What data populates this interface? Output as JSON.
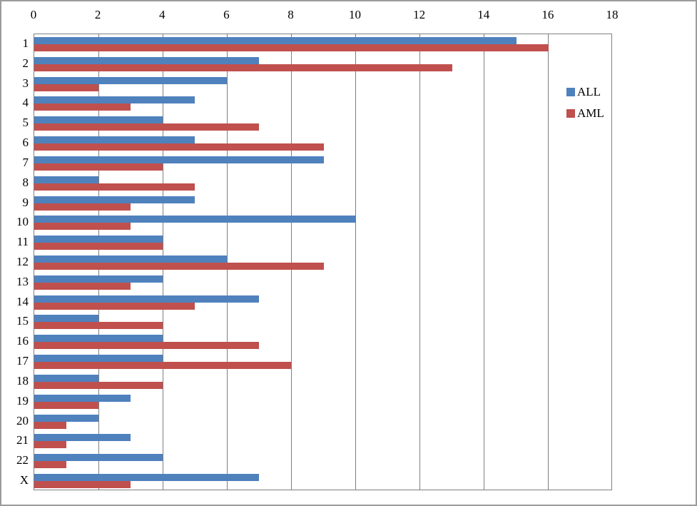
{
  "chart_data": {
    "type": "bar",
    "orientation": "horizontal",
    "title": "",
    "categories": [
      "1",
      "2",
      "3",
      "4",
      "5",
      "6",
      "7",
      "8",
      "9",
      "10",
      "11",
      "12",
      "13",
      "14",
      "15",
      "16",
      "17",
      "18",
      "19",
      "20",
      "21",
      "22",
      "X"
    ],
    "series": [
      {
        "name": "ALL",
        "color": "#4F81BD",
        "values": [
          15,
          7,
          6,
          5,
          4,
          5,
          9,
          2,
          5,
          10,
          4,
          6,
          4,
          7,
          2,
          4,
          4,
          2,
          3,
          2,
          3,
          4,
          7
        ]
      },
      {
        "name": "AML",
        "color": "#C0504D",
        "values": [
          16,
          13,
          2,
          3,
          7,
          9,
          4,
          5,
          3,
          3,
          4,
          9,
          3,
          5,
          4,
          7,
          8,
          4,
          2,
          1,
          1,
          1,
          3
        ]
      }
    ],
    "xlim": [
      0,
      18
    ],
    "x_ticks": [
      0,
      2,
      4,
      6,
      8,
      10,
      12,
      14,
      16,
      18
    ],
    "x_axis_position": "top",
    "grid": true,
    "gridline_color": "#7f7f7f",
    "plot_border_color": "#808080",
    "frame_border_color": "#9b9b9b",
    "background_color": "#ffffff",
    "legend_position": "right",
    "legend_items": [
      "ALL",
      "AML"
    ]
  }
}
